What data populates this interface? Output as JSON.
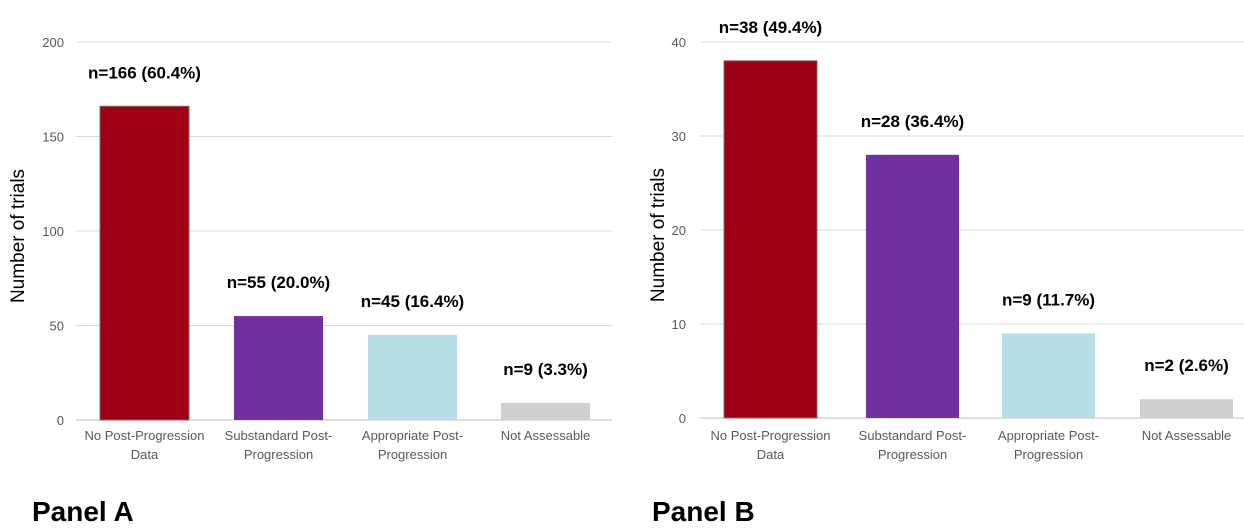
{
  "chart_data": [
    {
      "type": "bar",
      "panel_label": "Panel A",
      "ylabel": "Number of trials",
      "ylim": [
        0,
        200
      ],
      "yticks": [
        0,
        50,
        100,
        150,
        200
      ],
      "grid": true,
      "categories": [
        [
          "No Post-Progression",
          "Data"
        ],
        [
          "Substandard Post-",
          "Progression"
        ],
        [
          "Appropriate Post-",
          "Progression"
        ],
        [
          "Not Assessable"
        ]
      ],
      "values": [
        166,
        55,
        45,
        9
      ],
      "data_labels": [
        "n=166 (60.4%)",
        "n=55 (20.0%)",
        "n=45 (16.4%)",
        "n=9 (3.3%)"
      ],
      "colors": [
        "#A00015",
        "#7030A0",
        "#B7DDE8",
        "#D0CECE"
      ]
    },
    {
      "type": "bar",
      "panel_label": "Panel B",
      "ylabel": "Number of trials",
      "ylim": [
        0,
        40
      ],
      "yticks": [
        0,
        10,
        20,
        30,
        40
      ],
      "grid": true,
      "categories": [
        [
          "No Post-Progression",
          "Data"
        ],
        [
          "Substandard Post-",
          "Progression"
        ],
        [
          "Appropriate Post-",
          "Progression"
        ],
        [
          "Not Assessable"
        ]
      ],
      "values": [
        38,
        28,
        9,
        2
      ],
      "data_labels": [
        "n=38 (49.4%)",
        "n=28 (36.4%)",
        "n=9 (11.7%)",
        "n=2 (2.6%)"
      ],
      "colors": [
        "#A00015",
        "#7030A0",
        "#B7DDE8",
        "#D0CECE"
      ]
    }
  ]
}
